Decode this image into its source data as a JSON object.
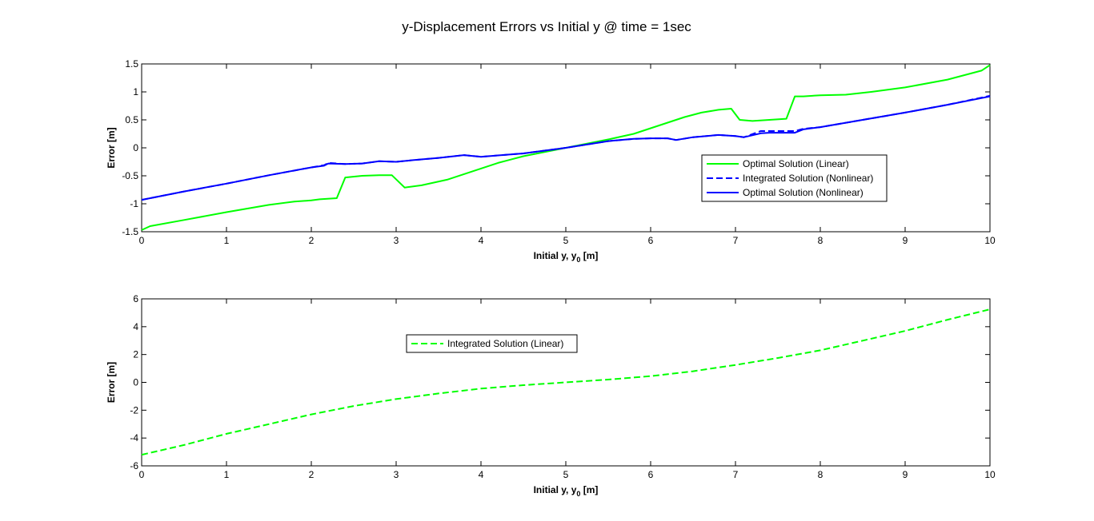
{
  "figure": {
    "title": "y-Displacement Errors vs Initial y @ time = 1sec"
  },
  "chart_data": [
    {
      "type": "line",
      "title": "",
      "xlabel": "Initial y, y",
      "xlabel_sub": "0",
      "xlabel_unit": " [m]",
      "ylabel": "Error [m]",
      "xlim": [
        0,
        10
      ],
      "ylim": [
        -1.5,
        1.5
      ],
      "xticks": [
        "0",
        "1",
        "2",
        "3",
        "4",
        "5",
        "6",
        "7",
        "8",
        "9",
        "10"
      ],
      "yticks": [
        "-1.5",
        "-1",
        "-0.5",
        "0",
        "0.5",
        "1",
        "1.5"
      ],
      "grid": false,
      "legend_position": "right",
      "series": [
        {
          "name": "Optimal Solution (Linear)",
          "color": "#00ff00",
          "style": "solid",
          "x": [
            0,
            0.1,
            0.5,
            1.0,
            1.5,
            1.8,
            2.0,
            2.1,
            2.3,
            2.4,
            2.6,
            2.8,
            2.95,
            3.1,
            3.3,
            3.6,
            3.8,
            4.0,
            4.2,
            4.5,
            5.0,
            5.5,
            5.8,
            6.0,
            6.2,
            6.4,
            6.6,
            6.8,
            6.95,
            7.05,
            7.2,
            7.4,
            7.6,
            7.7,
            7.8,
            8.0,
            8.3,
            8.6,
            9.0,
            9.5,
            9.9,
            10.0
          ],
          "y": [
            -1.47,
            -1.4,
            -1.29,
            -1.15,
            -1.02,
            -0.96,
            -0.94,
            -0.92,
            -0.9,
            -0.53,
            -0.5,
            -0.49,
            -0.49,
            -0.71,
            -0.67,
            -0.57,
            -0.47,
            -0.37,
            -0.27,
            -0.15,
            0.0,
            0.15,
            0.25,
            0.35,
            0.45,
            0.55,
            0.63,
            0.68,
            0.7,
            0.5,
            0.48,
            0.5,
            0.52,
            0.92,
            0.92,
            0.94,
            0.95,
            1.0,
            1.08,
            1.22,
            1.38,
            1.48
          ]
        },
        {
          "name": "Integrated Solution (Nonlinear)",
          "color": "#0000ff",
          "style": "dashed",
          "x": [
            0,
            0.5,
            1.0,
            1.5,
            2.0,
            2.15,
            2.2,
            2.4,
            2.6,
            2.8,
            3.0,
            3.2,
            3.5,
            3.8,
            4.0,
            4.5,
            5.0,
            5.5,
            5.8,
            6.0,
            6.2,
            6.3,
            6.5,
            6.8,
            7.0,
            7.1,
            7.3,
            7.4,
            7.7,
            7.8,
            8.0,
            8.5,
            9.0,
            9.5,
            10.0
          ],
          "y": [
            -0.93,
            -0.78,
            -0.64,
            -0.49,
            -0.35,
            -0.31,
            -0.27,
            -0.29,
            -0.28,
            -0.24,
            -0.25,
            -0.22,
            -0.18,
            -0.13,
            -0.16,
            -0.1,
            0.0,
            0.12,
            0.16,
            0.17,
            0.17,
            0.14,
            0.19,
            0.23,
            0.21,
            0.19,
            0.3,
            0.3,
            0.3,
            0.34,
            0.37,
            0.5,
            0.63,
            0.77,
            0.93
          ]
        },
        {
          "name": "Optimal Solution (Nonlinear)",
          "color": "#0000ff",
          "style": "solid",
          "x": [
            0,
            0.5,
            1.0,
            1.5,
            2.0,
            2.15,
            2.2,
            2.4,
            2.6,
            2.8,
            3.0,
            3.2,
            3.5,
            3.8,
            4.0,
            4.5,
            5.0,
            5.5,
            5.8,
            6.0,
            6.2,
            6.3,
            6.5,
            6.8,
            7.0,
            7.1,
            7.3,
            7.4,
            7.7,
            7.8,
            8.0,
            8.5,
            9.0,
            9.5,
            10.0
          ],
          "y": [
            -0.93,
            -0.78,
            -0.64,
            -0.49,
            -0.35,
            -0.32,
            -0.28,
            -0.29,
            -0.28,
            -0.24,
            -0.25,
            -0.22,
            -0.18,
            -0.13,
            -0.16,
            -0.1,
            0.0,
            0.12,
            0.16,
            0.17,
            0.17,
            0.14,
            0.19,
            0.23,
            0.21,
            0.19,
            0.26,
            0.27,
            0.27,
            0.33,
            0.37,
            0.5,
            0.63,
            0.77,
            0.92
          ]
        }
      ]
    },
    {
      "type": "line",
      "title": "",
      "xlabel": "Initial y, y",
      "xlabel_sub": "0",
      "xlabel_unit": " [m]",
      "ylabel": "Error [m]",
      "xlim": [
        0,
        10
      ],
      "ylim": [
        -6,
        6
      ],
      "xticks": [
        "0",
        "1",
        "2",
        "3",
        "4",
        "5",
        "6",
        "7",
        "8",
        "9",
        "10"
      ],
      "yticks": [
        "-6",
        "-4",
        "-2",
        "0",
        "2",
        "4",
        "6"
      ],
      "grid": false,
      "legend_position": "upper-left",
      "series": [
        {
          "name": "Integrated Solution (Linear)",
          "color": "#00ff00",
          "style": "dashed",
          "x": [
            0,
            0.5,
            1.0,
            1.5,
            2.0,
            2.5,
            3.0,
            3.5,
            4.0,
            4.5,
            5.0,
            5.5,
            6.0,
            6.5,
            7.0,
            7.5,
            8.0,
            8.5,
            9.0,
            9.5,
            10.0
          ],
          "y": [
            -5.2,
            -4.5,
            -3.7,
            -3.0,
            -2.3,
            -1.7,
            -1.2,
            -0.8,
            -0.45,
            -0.2,
            0.0,
            0.2,
            0.45,
            0.8,
            1.25,
            1.75,
            2.3,
            3.0,
            3.7,
            4.5,
            5.25
          ]
        }
      ]
    }
  ]
}
